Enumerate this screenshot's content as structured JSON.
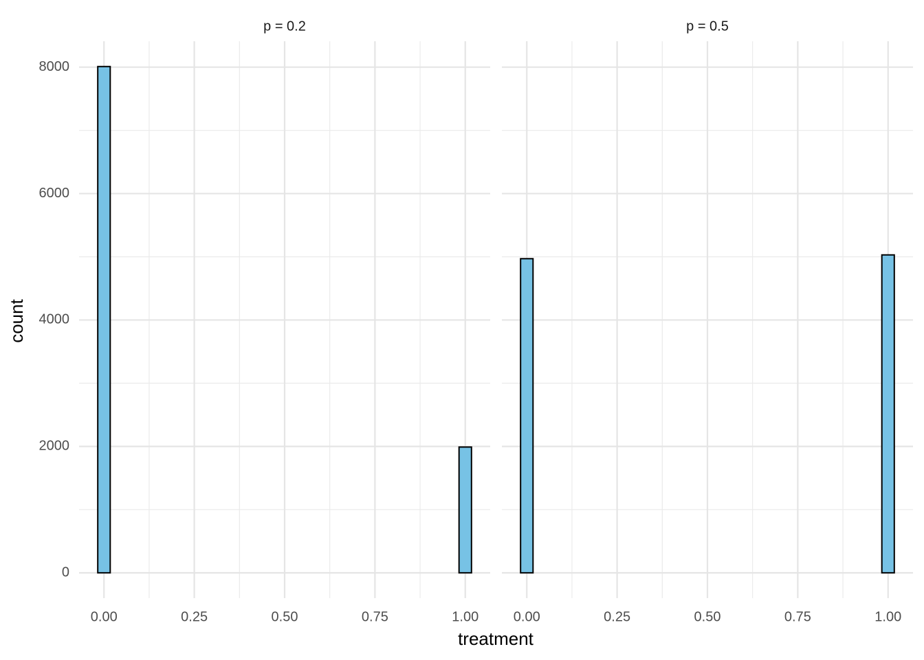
{
  "chart_data": [
    {
      "type": "histogram",
      "title": "p = 0.2",
      "xlabel": "treatment",
      "ylabel": "count",
      "bins": [
        -0.01724,
        0.01724,
        0.05172,
        0.08621,
        0.12069,
        0.15517,
        0.18966,
        0.22414,
        0.25862,
        0.2931,
        0.32759,
        0.36207,
        0.39655,
        0.43103,
        0.46552,
        0.5,
        0.53448,
        0.56897,
        0.60345,
        0.63793,
        0.67241,
        0.7069,
        0.74138,
        0.77586,
        0.81034,
        0.84483,
        0.87931,
        0.91379,
        0.94828,
        0.98276,
        1.01724
      ],
      "values": [
        8010,
        0,
        0,
        0,
        0,
        0,
        0,
        0,
        0,
        0,
        0,
        0,
        0,
        0,
        0,
        0,
        0,
        0,
        0,
        0,
        0,
        0,
        0,
        0,
        0,
        0,
        0,
        0,
        0,
        1990
      ],
      "color": "#77c2e5",
      "edgecolor": "#000000",
      "xlim": [
        -0.069,
        1.069
      ],
      "ylim": [
        -400,
        8410
      ],
      "xticks": [
        {
          "value": 0,
          "label": "0.00"
        },
        {
          "value": 0.25,
          "label": "0.25"
        },
        {
          "value": 0.5,
          "label": "0.50"
        },
        {
          "value": 0.75,
          "label": "0.75"
        },
        {
          "value": 1,
          "label": "1.00"
        }
      ],
      "yticks": [
        0,
        2000,
        4000,
        6000,
        8000
      ],
      "xminor": [
        0.125,
        0.375,
        0.625,
        0.875
      ],
      "yminor": [
        1000,
        3000,
        5000,
        7000
      ],
      "grid": true
    },
    {
      "type": "histogram",
      "title": "p = 0.5",
      "bins": [
        -0.01724,
        0.01724,
        0.05172,
        0.08621,
        0.12069,
        0.15517,
        0.18966,
        0.22414,
        0.25862,
        0.2931,
        0.32759,
        0.36207,
        0.39655,
        0.43103,
        0.46552,
        0.5,
        0.53448,
        0.56897,
        0.60345,
        0.63793,
        0.67241,
        0.7069,
        0.74138,
        0.77586,
        0.81034,
        0.84483,
        0.87931,
        0.91379,
        0.94828,
        0.98276,
        1.01724
      ],
      "values": [
        4970,
        0,
        0,
        0,
        0,
        0,
        0,
        0,
        0,
        0,
        0,
        0,
        0,
        0,
        0,
        0,
        0,
        0,
        0,
        0,
        0,
        0,
        0,
        0,
        0,
        0,
        0,
        0,
        0,
        5030
      ],
      "color": "#77c2e5",
      "edgecolor": "#000000",
      "xlim": [
        -0.069,
        1.069
      ],
      "ylim": [
        -400,
        8410
      ],
      "xticks": [
        {
          "value": 0,
          "label": "0.00"
        },
        {
          "value": 0.25,
          "label": "0.25"
        },
        {
          "value": 0.5,
          "label": "0.50"
        },
        {
          "value": 0.75,
          "label": "0.75"
        },
        {
          "value": 1,
          "label": "1.00"
        }
      ],
      "yticks": [
        0,
        2000,
        4000,
        6000,
        8000
      ],
      "xminor": [
        0.125,
        0.375,
        0.625,
        0.875
      ],
      "yminor": [
        1000,
        3000,
        5000,
        7000
      ],
      "grid": true
    }
  ]
}
